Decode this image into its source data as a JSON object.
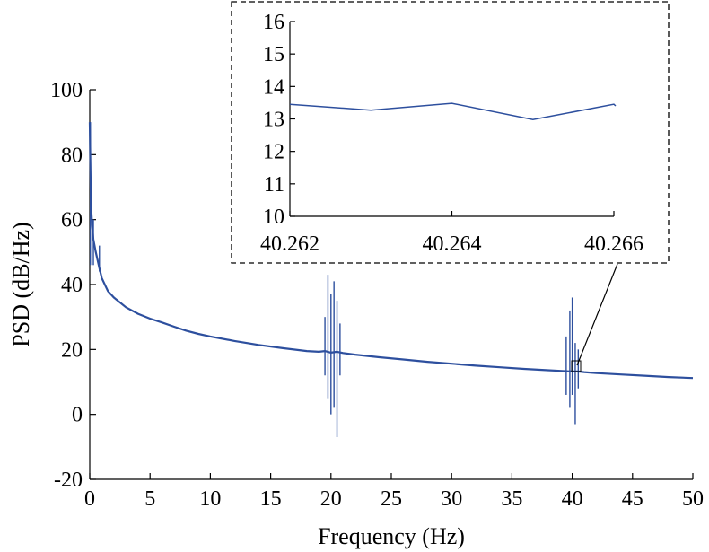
{
  "chart_data": [
    {
      "type": "line",
      "xlabel": "Frequency (Hz)",
      "ylabel": "PSD (dB/Hz)",
      "xlim": [
        0,
        50
      ],
      "ylim": [
        -20,
        100
      ],
      "x_ticks": [
        0,
        5,
        10,
        15,
        20,
        25,
        30,
        35,
        40,
        45,
        50
      ],
      "y_ticks": [
        -20,
        0,
        20,
        40,
        60,
        80,
        100
      ],
      "line_color": "#2d4f9e",
      "grid": false,
      "series": [
        {
          "x": [
            0,
            0.05,
            0.1,
            0.2,
            0.3,
            0.5,
            0.8,
            1,
            1.5,
            2,
            3,
            4,
            5,
            6,
            7,
            8,
            9,
            10,
            12,
            14,
            16,
            18,
            19,
            19.5,
            20,
            20.5,
            21,
            22,
            24,
            26,
            28,
            30,
            32,
            34,
            36,
            38,
            39,
            39.5,
            40,
            40.5,
            41,
            42,
            44,
            46,
            48,
            50
          ],
          "y": [
            90,
            77,
            65,
            58,
            54,
            50,
            45,
            42,
            38,
            36,
            33,
            31,
            29.5,
            28.3,
            27,
            25.8,
            24.8,
            24,
            22.6,
            21.4,
            20.4,
            19.5,
            19.3,
            19.5,
            19,
            19.3,
            18.9,
            18.4,
            17.6,
            16.9,
            16.2,
            15.6,
            15,
            14.5,
            14,
            13.6,
            13.4,
            13.3,
            13.2,
            13.2,
            13,
            12.7,
            12.3,
            11.9,
            11.5,
            11.2
          ]
        }
      ],
      "spikes": [
        {
          "x": 0.05,
          "min": 46,
          "max": 90
        },
        {
          "x": 0.3,
          "min": 46,
          "max": 60
        },
        {
          "x": 0.8,
          "min": 44,
          "max": 52
        },
        {
          "x": 19.5,
          "min": 12,
          "max": 30
        },
        {
          "x": 19.75,
          "min": 5,
          "max": 43
        },
        {
          "x": 20.0,
          "min": 0,
          "max": 37
        },
        {
          "x": 20.25,
          "min": 2,
          "max": 41
        },
        {
          "x": 20.5,
          "min": -7,
          "max": 35
        },
        {
          "x": 20.75,
          "min": 12,
          "max": 28
        },
        {
          "x": 39.5,
          "min": 6,
          "max": 24
        },
        {
          "x": 39.8,
          "min": 2,
          "max": 32
        },
        {
          "x": 40.0,
          "min": 6,
          "max": 36
        },
        {
          "x": 40.25,
          "min": -3,
          "max": 22
        },
        {
          "x": 40.5,
          "min": 8,
          "max": 20
        }
      ]
    },
    {
      "type": "line",
      "role": "inset",
      "xlim": [
        40.262,
        40.266
      ],
      "ylim": [
        10,
        16
      ],
      "x_ticks": [
        40.262,
        40.264,
        40.266
      ],
      "x_tick_labels": [
        "40.262",
        "40.264",
        "40.266"
      ],
      "y_ticks": [
        10,
        11,
        12,
        13,
        14,
        15,
        16
      ],
      "line_color": "#2d4f9e",
      "series": [
        {
          "x": [
            40.262,
            40.263,
            40.264,
            40.265,
            40.266,
            40.266
          ],
          "y": [
            13.45,
            13.27,
            13.48,
            12.98,
            13.45,
            13.4
          ]
        }
      ]
    }
  ]
}
